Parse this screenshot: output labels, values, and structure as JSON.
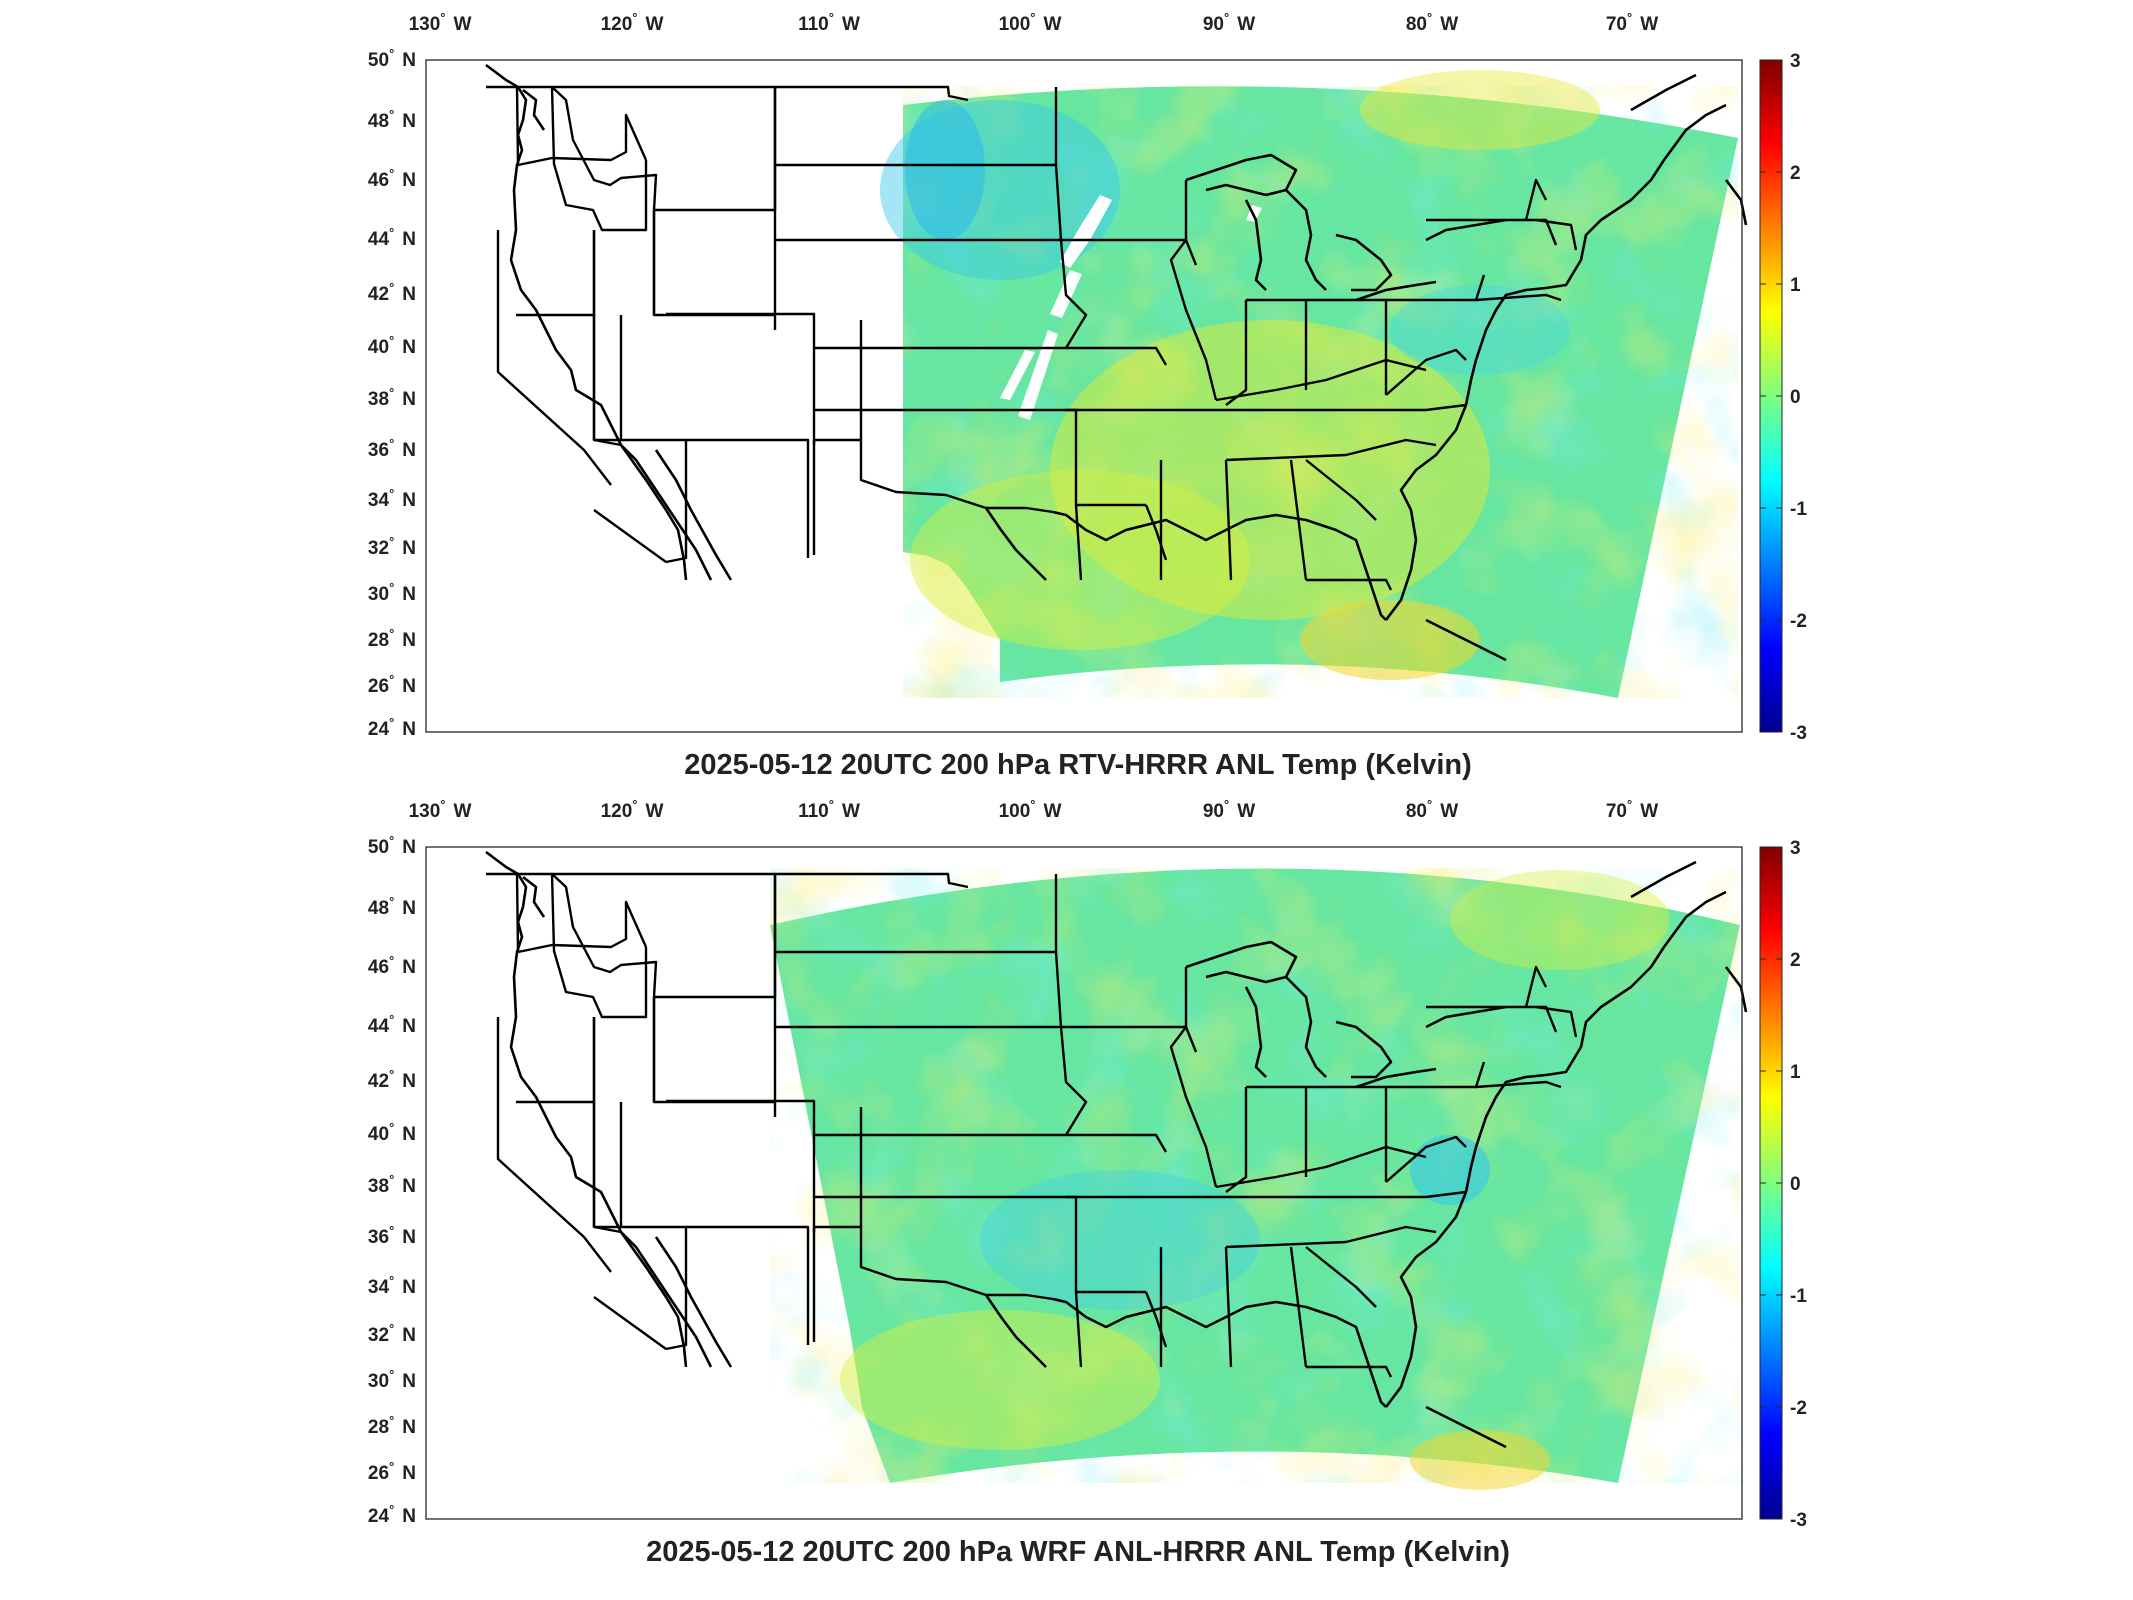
{
  "panels": [
    {
      "title": "2025-05-12 20UTC 200 hPa RTV-HRRR ANL Temp (Kelvin)",
      "field": "RTV-HRRR ANL minus HRRR ANL, 200 hPa temperature",
      "lon_labels": [
        {
          "deg": "130",
          "hemi": "W"
        },
        {
          "deg": "120",
          "hemi": "W"
        },
        {
          "deg": "110",
          "hemi": "W"
        },
        {
          "deg": "100",
          "hemi": "W"
        },
        {
          "deg": "90",
          "hemi": "W"
        },
        {
          "deg": "80",
          "hemi": "W"
        },
        {
          "deg": "70",
          "hemi": "W"
        }
      ],
      "lat_labels": [
        {
          "deg": "50",
          "hemi": "N"
        },
        {
          "deg": "48",
          "hemi": "N"
        },
        {
          "deg": "46",
          "hemi": "N"
        },
        {
          "deg": "44",
          "hemi": "N"
        },
        {
          "deg": "42",
          "hemi": "N"
        },
        {
          "deg": "40",
          "hemi": "N"
        },
        {
          "deg": "38",
          "hemi": "N"
        },
        {
          "deg": "36",
          "hemi": "N"
        },
        {
          "deg": "34",
          "hemi": "N"
        },
        {
          "deg": "32",
          "hemi": "N"
        },
        {
          "deg": "30",
          "hemi": "N"
        },
        {
          "deg": "28",
          "hemi": "N"
        },
        {
          "deg": "26",
          "hemi": "N"
        },
        {
          "deg": "24",
          "hemi": "N"
        }
      ],
      "colorbar": {
        "ticks": [
          "3",
          "2",
          "1",
          "0",
          "-1",
          "-2",
          "-3"
        ],
        "range": [
          -3,
          3
        ],
        "colormap": "jet"
      }
    },
    {
      "title": "2025-05-12 20UTC 200 hPa WRF ANL-HRRR ANL Temp (Kelvin)",
      "field": "WRF ANL minus HRRR ANL, 200 hPa temperature",
      "lon_labels": [
        {
          "deg": "130",
          "hemi": "W"
        },
        {
          "deg": "120",
          "hemi": "W"
        },
        {
          "deg": "110",
          "hemi": "W"
        },
        {
          "deg": "100",
          "hemi": "W"
        },
        {
          "deg": "90",
          "hemi": "W"
        },
        {
          "deg": "80",
          "hemi": "W"
        },
        {
          "deg": "70",
          "hemi": "W"
        }
      ],
      "lat_labels": [
        {
          "deg": "50",
          "hemi": "N"
        },
        {
          "deg": "48",
          "hemi": "N"
        },
        {
          "deg": "46",
          "hemi": "N"
        },
        {
          "deg": "44",
          "hemi": "N"
        },
        {
          "deg": "42",
          "hemi": "N"
        },
        {
          "deg": "40",
          "hemi": "N"
        },
        {
          "deg": "38",
          "hemi": "N"
        },
        {
          "deg": "36",
          "hemi": "N"
        },
        {
          "deg": "34",
          "hemi": "N"
        },
        {
          "deg": "32",
          "hemi": "N"
        },
        {
          "deg": "30",
          "hemi": "N"
        },
        {
          "deg": "28",
          "hemi": "N"
        },
        {
          "deg": "26",
          "hemi": "N"
        },
        {
          "deg": "24",
          "hemi": "N"
        }
      ],
      "colorbar": {
        "ticks": [
          "3",
          "2",
          "1",
          "0",
          "-1",
          "-2",
          "-3"
        ],
        "range": [
          -3,
          3
        ],
        "colormap": "jet"
      }
    }
  ],
  "colors": {
    "field_base": "#5fe6a8",
    "field_cyan": "#30d8e8",
    "field_yellow": "#d6f040",
    "field_orange": "#f5c020",
    "missing": "#ffffff",
    "lines": "#000000"
  }
}
